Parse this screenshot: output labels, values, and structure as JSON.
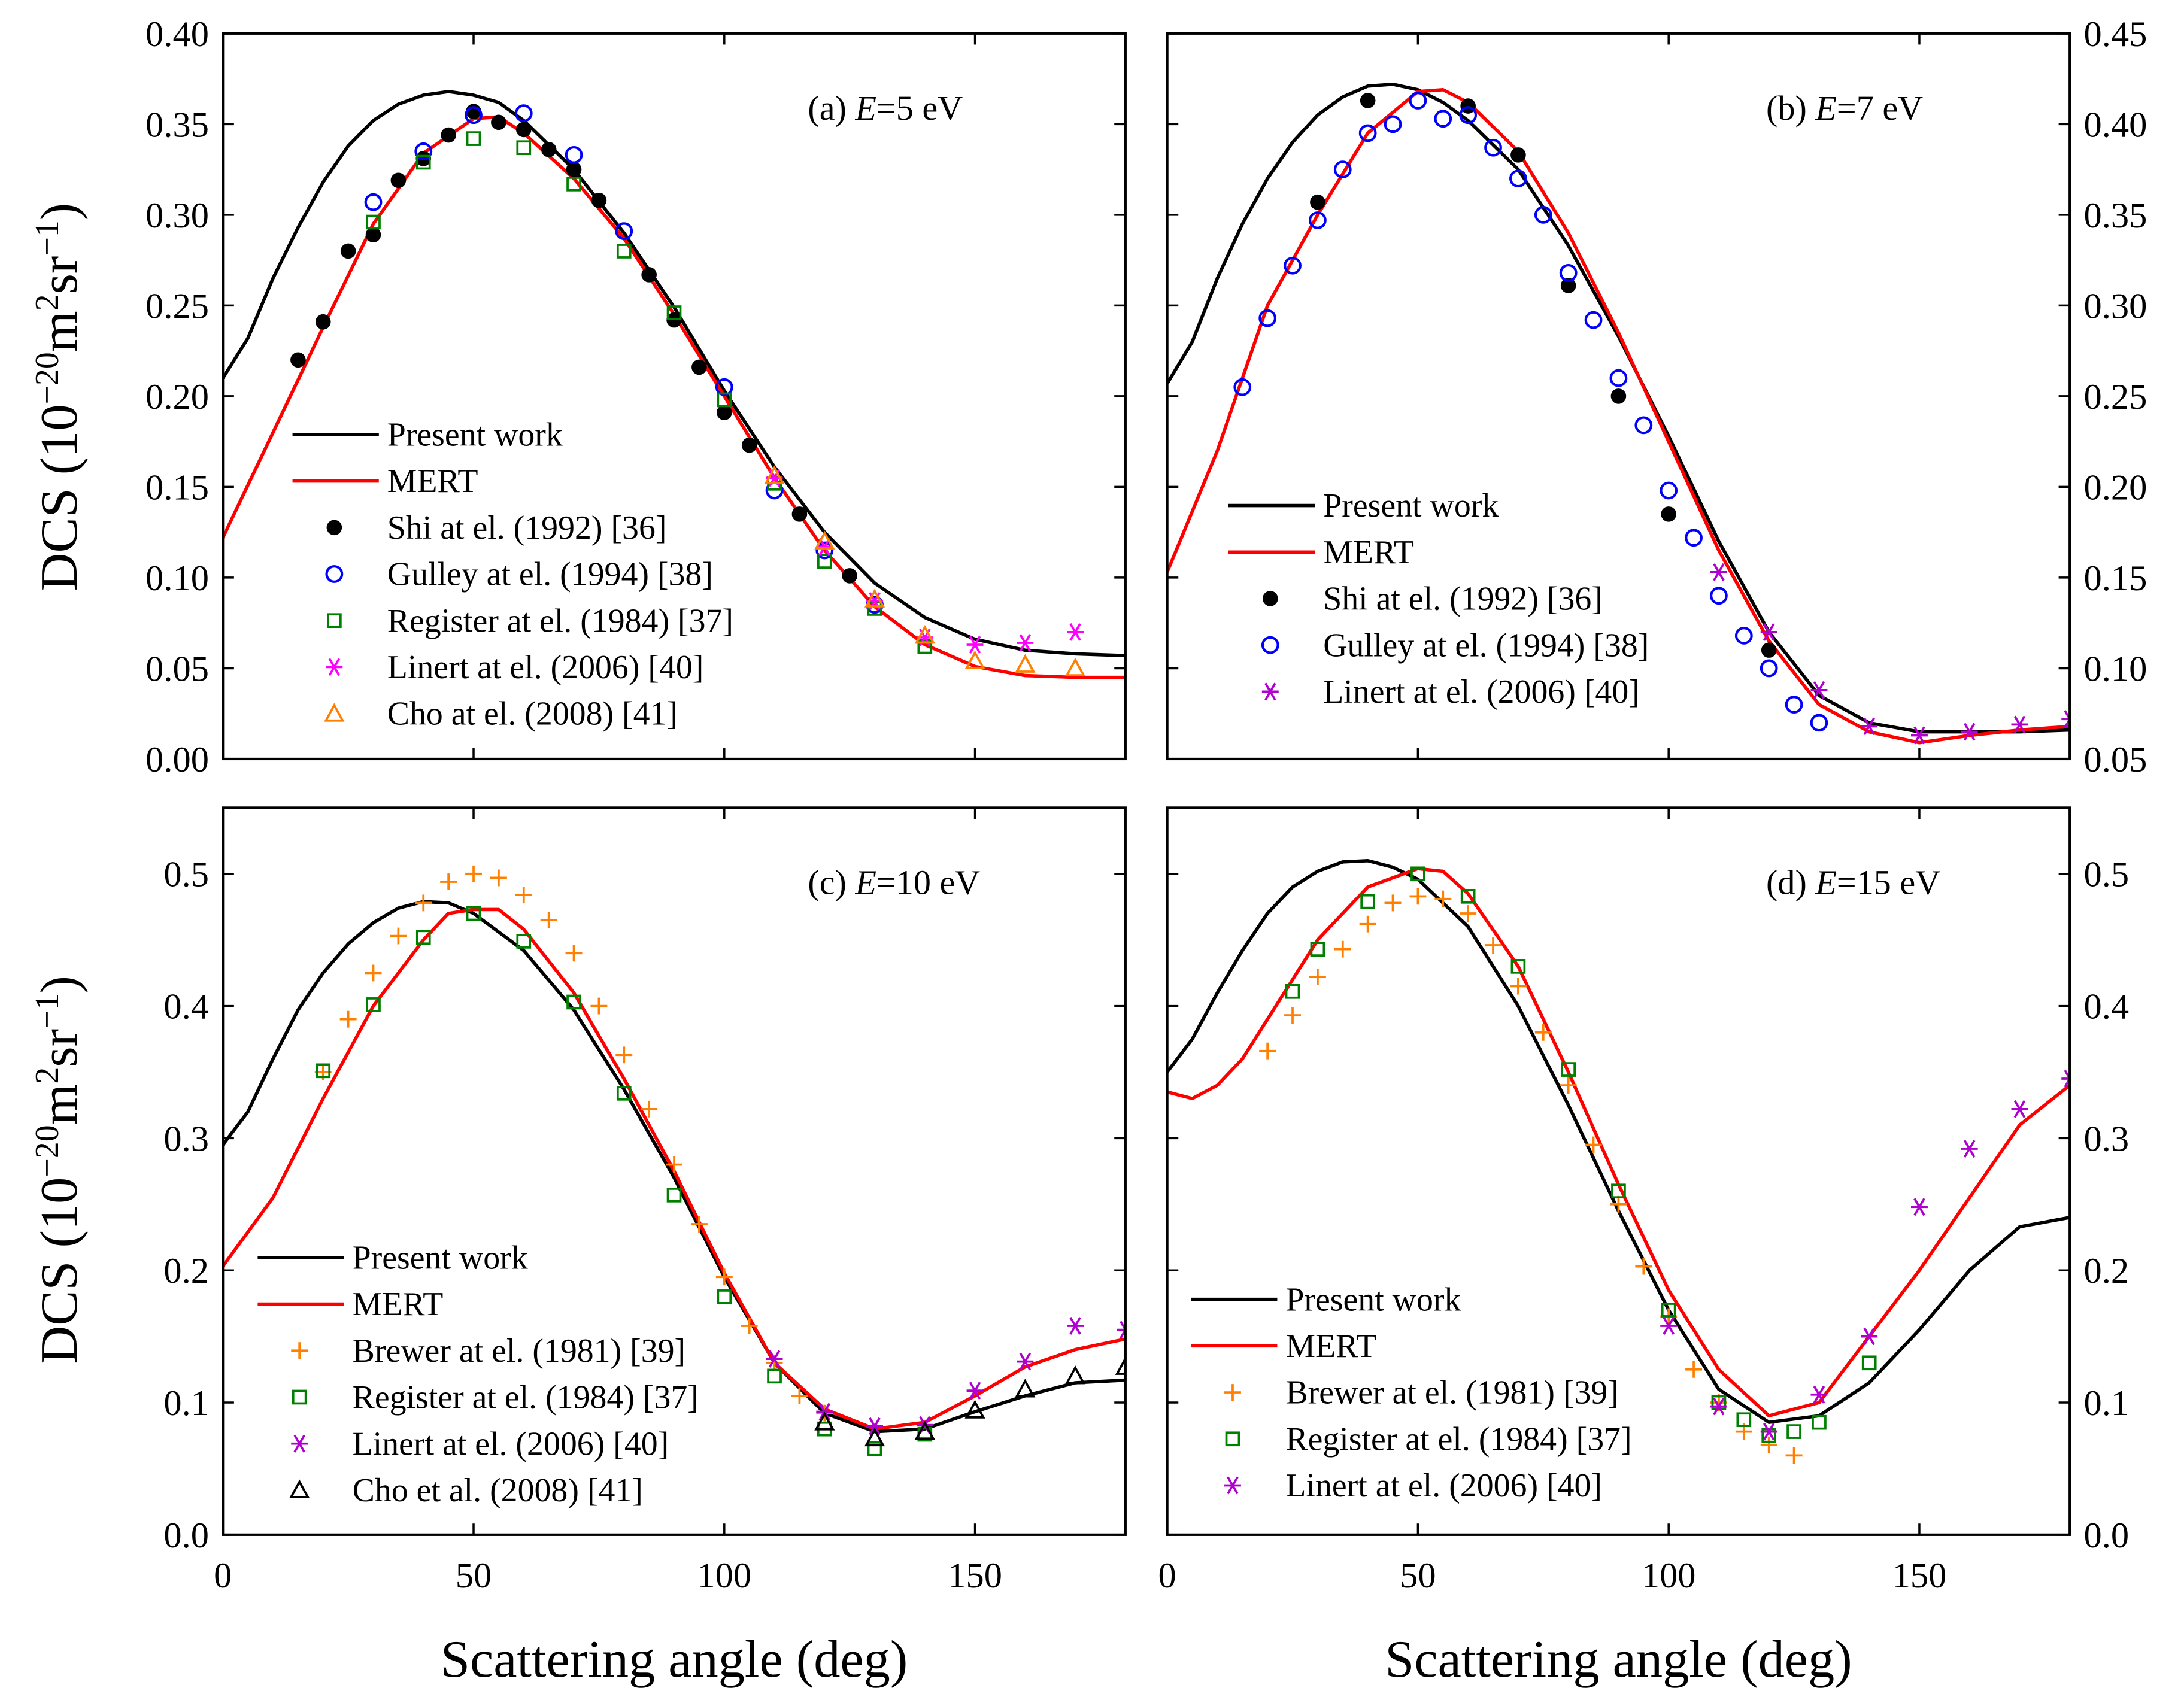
{
  "colors": {
    "present": "#000000",
    "mert": "#ff0000",
    "shi": "#000000",
    "gulley": "#0000ff",
    "register": "#008000",
    "linert": "#ff00ff",
    "linert2": "#b000d0",
    "cho": "#ff8000",
    "brewer": "#ff8000",
    "cho_c": "#000000"
  },
  "xlabel": "Scattering angle (deg)",
  "ylabel_parts": [
    [
      "DCS (10",
      ""
    ],
    [
      "−20",
      "sup"
    ],
    [
      "m",
      ""
    ],
    [
      "2",
      "sup"
    ],
    [
      "sr",
      ""
    ],
    [
      "−1",
      "sup"
    ],
    [
      ")",
      ""
    ]
  ],
  "chart_data": [
    {
      "type": "line+scatter",
      "panel": "(a)",
      "var": "E",
      "value_text": "=5 eV",
      "xlim": [
        0,
        180
      ],
      "ylim": [
        0,
        0.4
      ],
      "yticks": [
        0,
        0.05,
        0.1,
        0.15,
        0.2,
        0.25,
        0.3,
        0.35,
        0.4
      ],
      "ytick_fmt": 2,
      "yaxis": "left",
      "xticks": [
        0,
        50,
        100,
        150
      ],
      "show_xticklabels": false,
      "series": [
        {
          "name": "Present work",
          "kind": "line",
          "color": "#000000",
          "x": [
            0,
            5,
            10,
            15,
            20,
            25,
            30,
            35,
            40,
            45,
            50,
            55,
            60,
            70,
            80,
            90,
            100,
            110,
            120,
            130,
            140,
            150,
            160,
            170,
            180
          ],
          "y": [
            0.21,
            0.232,
            0.265,
            0.293,
            0.318,
            0.338,
            0.352,
            0.361,
            0.366,
            0.368,
            0.366,
            0.362,
            0.352,
            0.325,
            0.29,
            0.249,
            0.203,
            0.161,
            0.125,
            0.097,
            0.078,
            0.066,
            0.06,
            0.058,
            0.057
          ]
        },
        {
          "name": "MERT",
          "kind": "line",
          "color": "#ff0000",
          "x": [
            0,
            10,
            20,
            30,
            40,
            50,
            55,
            60,
            70,
            80,
            90,
            100,
            110,
            120,
            130,
            140,
            150,
            160,
            170,
            180
          ],
          "y": [
            0.122,
            0.18,
            0.238,
            0.295,
            0.334,
            0.353,
            0.354,
            0.345,
            0.32,
            0.287,
            0.245,
            0.2,
            0.155,
            0.115,
            0.084,
            0.063,
            0.051,
            0.046,
            0.045,
            0.045
          ]
        },
        {
          "name": "Shi at el. (1992) [36]",
          "kind": "filled-circle",
          "color": "#000000",
          "x": [
            15,
            20,
            25,
            30,
            35,
            40,
            45,
            50,
            55,
            60,
            65,
            70,
            75,
            85,
            90,
            95,
            100,
            105,
            115,
            125
          ],
          "y": [
            0.22,
            0.241,
            0.28,
            0.289,
            0.319,
            0.331,
            0.344,
            0.357,
            0.351,
            0.347,
            0.336,
            0.325,
            0.308,
            0.267,
            0.242,
            0.216,
            0.191,
            0.173,
            0.135,
            0.101
          ]
        },
        {
          "name": "Gulley at el. (1994) [38]",
          "kind": "open-circle",
          "color": "#0000ff",
          "x": [
            30,
            40,
            50,
            60,
            70,
            80,
            100,
            110,
            120,
            130
          ],
          "y": [
            0.307,
            0.335,
            0.355,
            0.356,
            0.333,
            0.291,
            0.205,
            0.148,
            0.115,
            0.085
          ]
        },
        {
          "name": "Register at el. (1984) [37]",
          "kind": "open-square",
          "color": "#008000",
          "x": [
            30,
            40,
            50,
            60,
            70,
            80,
            90,
            100,
            110,
            120,
            130,
            140
          ],
          "y": [
            0.296,
            0.329,
            0.342,
            0.337,
            0.317,
            0.28,
            0.246,
            0.198,
            0.152,
            0.109,
            0.083,
            0.062
          ]
        },
        {
          "name": "Linert at el. (2006) [40]",
          "kind": "asterisk",
          "color": "#ff00ff",
          "x": [
            110,
            120,
            130,
            140,
            150,
            160,
            170
          ],
          "y": [
            0.155,
            0.117,
            0.087,
            0.067,
            0.063,
            0.064,
            0.07
          ]
        },
        {
          "name": "Cho at el. (2008) [41]",
          "kind": "open-triangle",
          "color": "#ff8000",
          "x": [
            110,
            120,
            130,
            140,
            150,
            160,
            170
          ],
          "y": [
            0.156,
            0.12,
            0.088,
            0.068,
            0.054,
            0.052,
            0.05
          ]
        }
      ]
    },
    {
      "type": "line+scatter",
      "panel": "(b)",
      "var": "E",
      "value_text": "=7 eV",
      "xlim": [
        0,
        180
      ],
      "ylim": [
        0.05,
        0.45
      ],
      "yticks": [
        0.05,
        0.1,
        0.15,
        0.2,
        0.25,
        0.3,
        0.35,
        0.4,
        0.45
      ],
      "ytick_fmt": 2,
      "yaxis": "right",
      "xticks": [
        0,
        50,
        100,
        150
      ],
      "show_xticklabels": false,
      "series": [
        {
          "name": "Present work",
          "kind": "line",
          "color": "#000000",
          "x": [
            0,
            5,
            10,
            15,
            20,
            25,
            30,
            35,
            40,
            45,
            50,
            55,
            60,
            70,
            80,
            90,
            100,
            110,
            120,
            130,
            140,
            150,
            160,
            170,
            180
          ],
          "y": [
            0.257,
            0.28,
            0.315,
            0.345,
            0.37,
            0.39,
            0.405,
            0.415,
            0.421,
            0.422,
            0.419,
            0.412,
            0.402,
            0.375,
            0.333,
            0.283,
            0.228,
            0.17,
            0.12,
            0.085,
            0.07,
            0.065,
            0.065,
            0.065,
            0.066
          ]
        },
        {
          "name": "MERT",
          "kind": "line",
          "color": "#ff0000",
          "x": [
            0,
            10,
            15,
            20,
            30,
            40,
            50,
            55,
            60,
            70,
            80,
            90,
            100,
            110,
            120,
            130,
            140,
            150,
            160,
            170,
            180
          ],
          "y": [
            0.153,
            0.22,
            0.26,
            0.3,
            0.35,
            0.395,
            0.418,
            0.419,
            0.412,
            0.385,
            0.34,
            0.285,
            0.225,
            0.165,
            0.115,
            0.08,
            0.065,
            0.059,
            0.063,
            0.066,
            0.068
          ]
        },
        {
          "name": "Shi at el. (1992) [36]",
          "kind": "filled-circle",
          "color": "#000000",
          "x": [
            30,
            40,
            60,
            70,
            80,
            90,
            100,
            120
          ],
          "y": [
            0.357,
            0.413,
            0.41,
            0.383,
            0.311,
            0.25,
            0.185,
            0.11
          ]
        },
        {
          "name": "Gulley at el. (1994) [38]",
          "kind": "open-circle",
          "color": "#0000ff",
          "x": [
            15,
            20,
            25,
            30,
            35,
            40,
            45,
            50,
            55,
            60,
            65,
            70,
            75,
            80,
            85,
            90,
            95,
            100,
            105,
            110,
            115,
            120,
            125,
            130
          ],
          "y": [
            0.255,
            0.293,
            0.322,
            0.347,
            0.375,
            0.395,
            0.4,
            0.413,
            0.403,
            0.405,
            0.387,
            0.37,
            0.35,
            0.318,
            0.292,
            0.26,
            0.234,
            0.198,
            0.172,
            0.14,
            0.118,
            0.1,
            0.08,
            0.07
          ]
        },
        {
          "name": "Linert at el. (2006) [40]",
          "kind": "asterisk",
          "color": "#b000d0",
          "x": [
            110,
            120,
            130,
            140,
            150,
            160,
            170,
            180
          ],
          "y": [
            0.153,
            0.12,
            0.088,
            0.068,
            0.063,
            0.065,
            0.069,
            0.072
          ]
        }
      ]
    },
    {
      "type": "line+scatter",
      "panel": "(c)",
      "var": "E",
      "value_text": "=10 eV",
      "xlim": [
        0,
        180
      ],
      "ylim": [
        0,
        0.55
      ],
      "yticks": [
        0,
        0.1,
        0.2,
        0.3,
        0.4,
        0.5
      ],
      "ytick_fmt": 1,
      "yaxis": "left",
      "xticks": [
        0,
        50,
        100,
        150
      ],
      "show_xticklabels": true,
      "series": [
        {
          "name": "Present work",
          "kind": "line",
          "color": "#000000",
          "x": [
            0,
            5,
            10,
            15,
            20,
            25,
            30,
            35,
            40,
            45,
            50,
            60,
            70,
            80,
            90,
            100,
            110,
            120,
            130,
            140,
            150,
            160,
            170,
            180
          ],
          "y": [
            0.295,
            0.32,
            0.36,
            0.397,
            0.425,
            0.447,
            0.463,
            0.474,
            0.479,
            0.478,
            0.47,
            0.442,
            0.397,
            0.337,
            0.27,
            0.195,
            0.13,
            0.092,
            0.078,
            0.08,
            0.093,
            0.105,
            0.115,
            0.117
          ]
        },
        {
          "name": "MERT",
          "kind": "line",
          "color": "#ff0000",
          "x": [
            0,
            10,
            20,
            30,
            40,
            45,
            50,
            55,
            60,
            70,
            80,
            90,
            100,
            110,
            120,
            130,
            140,
            150,
            160,
            170,
            180
          ],
          "y": [
            0.203,
            0.255,
            0.33,
            0.4,
            0.45,
            0.47,
            0.473,
            0.473,
            0.458,
            0.41,
            0.345,
            0.275,
            0.198,
            0.13,
            0.095,
            0.08,
            0.085,
            0.105,
            0.127,
            0.14,
            0.148
          ]
        },
        {
          "name": "Brewer at el. (1981) [39]",
          "kind": "plus",
          "color": "#ff8000",
          "x": [
            20,
            25,
            30,
            35,
            40,
            45,
            50,
            55,
            60,
            65,
            70,
            75,
            80,
            85,
            90,
            95,
            100,
            105,
            110,
            115,
            120
          ],
          "y": [
            0.35,
            0.39,
            0.425,
            0.453,
            0.478,
            0.494,
            0.5,
            0.497,
            0.484,
            0.465,
            0.44,
            0.4,
            0.363,
            0.322,
            0.28,
            0.235,
            0.195,
            0.158,
            0.13,
            0.105,
            0.092
          ]
        },
        {
          "name": "Register at el. (1984) [37]",
          "kind": "open-square",
          "color": "#008000",
          "x": [
            20,
            30,
            40,
            50,
            60,
            70,
            80,
            90,
            100,
            110,
            120,
            130,
            140
          ],
          "y": [
            0.351,
            0.401,
            0.452,
            0.47,
            0.449,
            0.403,
            0.334,
            0.257,
            0.18,
            0.12,
            0.08,
            0.065,
            0.076
          ]
        },
        {
          "name": "Linert at el. (2006) [40]",
          "kind": "asterisk",
          "color": "#b000d0",
          "x": [
            110,
            120,
            130,
            140,
            150,
            160,
            170,
            180
          ],
          "y": [
            0.133,
            0.093,
            0.082,
            0.083,
            0.109,
            0.131,
            0.158,
            0.155
          ]
        },
        {
          "name": "Cho et al. (2008) [41]",
          "kind": "open-triangle",
          "color": "#000000",
          "x": [
            120,
            130,
            140,
            150,
            160,
            170,
            180
          ],
          "y": [
            0.085,
            0.073,
            0.078,
            0.094,
            0.11,
            0.12,
            0.127
          ]
        }
      ]
    },
    {
      "type": "line+scatter",
      "panel": "(d)",
      "var": "E",
      "value_text": "=15 eV",
      "xlim": [
        0,
        180
      ],
      "ylim": [
        0,
        0.55
      ],
      "yticks": [
        0,
        0.1,
        0.2,
        0.3,
        0.4,
        0.5
      ],
      "ytick_fmt": 1,
      "yaxis": "right",
      "xticks": [
        0,
        50,
        100,
        150
      ],
      "show_xticklabels": true,
      "series": [
        {
          "name": "Present work",
          "kind": "line",
          "color": "#000000",
          "x": [
            0,
            5,
            10,
            15,
            20,
            25,
            30,
            35,
            40,
            45,
            50,
            60,
            70,
            80,
            90,
            100,
            110,
            120,
            130,
            140,
            150,
            160,
            170,
            180
          ],
          "y": [
            0.35,
            0.375,
            0.41,
            0.442,
            0.47,
            0.49,
            0.502,
            0.509,
            0.51,
            0.505,
            0.496,
            0.46,
            0.4,
            0.325,
            0.245,
            0.17,
            0.11,
            0.085,
            0.09,
            0.115,
            0.155,
            0.2,
            0.233,
            0.24
          ]
        },
        {
          "name": "MERT",
          "kind": "line",
          "color": "#ff0000",
          "x": [
            0,
            5,
            10,
            15,
            20,
            30,
            40,
            50,
            55,
            60,
            70,
            80,
            90,
            100,
            110,
            120,
            130,
            140,
            150,
            160,
            170,
            180
          ],
          "y": [
            0.335,
            0.33,
            0.34,
            0.36,
            0.39,
            0.45,
            0.49,
            0.504,
            0.502,
            0.485,
            0.43,
            0.35,
            0.265,
            0.185,
            0.125,
            0.09,
            0.1,
            0.15,
            0.2,
            0.255,
            0.31,
            0.34
          ]
        },
        {
          "name": "Brewer at el. (1981) [39]",
          "kind": "plus",
          "color": "#ff8000",
          "x": [
            20,
            25,
            30,
            35,
            40,
            45,
            50,
            55,
            60,
            65,
            70,
            75,
            80,
            85,
            90,
            95,
            100,
            105,
            110,
            115,
            120,
            125
          ],
          "y": [
            0.366,
            0.393,
            0.422,
            0.443,
            0.462,
            0.478,
            0.483,
            0.481,
            0.47,
            0.446,
            0.415,
            0.38,
            0.34,
            0.295,
            0.25,
            0.203,
            0.165,
            0.125,
            0.1,
            0.078,
            0.068,
            0.06
          ]
        },
        {
          "name": "Register at el. (1984) [37]",
          "kind": "open-square",
          "color": "#008000",
          "x": [
            25,
            30,
            40,
            50,
            60,
            70,
            80,
            90,
            100,
            110,
            115,
            120,
            125,
            130,
            140
          ],
          "y": [
            0.411,
            0.443,
            0.479,
            0.5,
            0.483,
            0.43,
            0.352,
            0.26,
            0.17,
            0.1,
            0.087,
            0.075,
            0.078,
            0.085,
            0.13
          ]
        },
        {
          "name": "Linert at el. (2006) [40]",
          "kind": "asterisk",
          "color": "#b000d0",
          "x": [
            100,
            110,
            120,
            130,
            140,
            150,
            160,
            170,
            180
          ],
          "y": [
            0.158,
            0.097,
            0.078,
            0.106,
            0.15,
            0.248,
            0.292,
            0.322,
            0.345
          ]
        }
      ]
    }
  ]
}
